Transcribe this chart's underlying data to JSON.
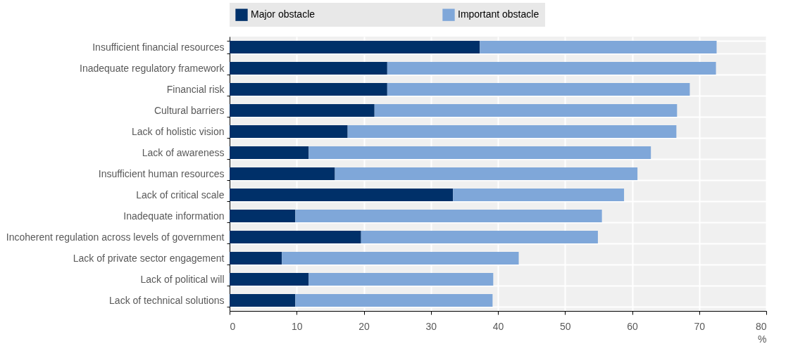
{
  "chart_data": {
    "type": "bar",
    "orientation": "horizontal",
    "stacked": true,
    "xlabel": "%",
    "categories": [
      "Insufficient financial resources",
      "Inadequate regulatory framework",
      "Financial risk",
      "Cultural barriers",
      "Lack of holistic vision",
      "Lack of awareness ",
      "Insufficient human resources",
      "Lack of critical scale",
      "Inadequate information ",
      "Incoherent regulation across levels of government",
      "Lack of private sector engagement",
      "Lack of political will",
      "Lack of technical solutions"
    ],
    "series": [
      {
        "name": "Major obstacle",
        "color": "#003069",
        "values": [
          37.3,
          23.5,
          23.5,
          21.6,
          17.6,
          11.8,
          15.7,
          33.3,
          9.8,
          19.6,
          7.8,
          11.8,
          9.8
        ]
      },
      {
        "name": "Important obstacle",
        "color": "#7fa7d9",
        "values": [
          35.3,
          49.0,
          45.1,
          45.1,
          49.0,
          51.0,
          45.1,
          25.5,
          45.7,
          35.3,
          35.3,
          27.5,
          29.4
        ]
      }
    ],
    "xlim": [
      0,
      80
    ],
    "xticks": [
      0,
      10,
      20,
      30,
      40,
      50,
      60,
      70,
      80
    ],
    "grid": true,
    "legend": "top"
  }
}
